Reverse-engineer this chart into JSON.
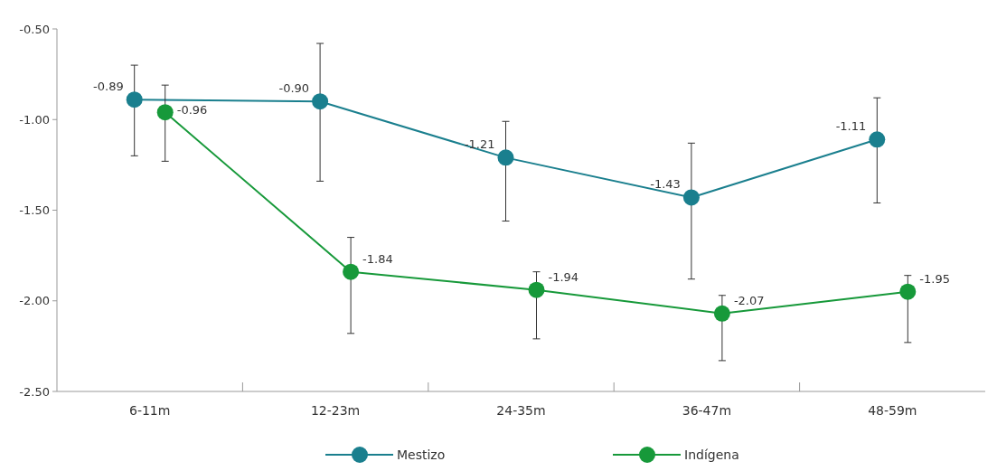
{
  "chart_data": {
    "type": "line",
    "categories": [
      "6-11m",
      "12-23m",
      "24-35m",
      "36-47m",
      "48-59m"
    ],
    "series": [
      {
        "name": "Mestizo",
        "color": "#1a7f8e",
        "values": [
          -0.89,
          -0.9,
          -1.21,
          -1.43,
          -1.11
        ],
        "value_labels": [
          "-0.89",
          "-0.90",
          "-1.21",
          "-1.43",
          "-1.11"
        ],
        "errors": [
          [
            -1.2,
            -0.7
          ],
          [
            -1.34,
            -0.58
          ],
          [
            -1.56,
            -1.01
          ],
          [
            -1.88,
            -1.13
          ],
          [
            -1.46,
            -0.88
          ]
        ]
      },
      {
        "name": "Indígena",
        "color": "#17993a",
        "values": [
          -0.96,
          -1.84,
          -1.94,
          -2.07,
          -1.95
        ],
        "value_labels": [
          "-0.96",
          "-1.84",
          "-1.94",
          "-2.07",
          "-1.95"
        ],
        "errors": [
          [
            -1.23,
            -0.81
          ],
          [
            -2.18,
            -1.65
          ],
          [
            -2.21,
            -1.84
          ],
          [
            -2.33,
            -1.97
          ],
          [
            -2.23,
            -1.86
          ]
        ]
      }
    ],
    "ylim": [
      -2.5,
      -0.5
    ],
    "yticks": [
      {
        "value": -2.5,
        "label": "-2.50"
      },
      {
        "value": -2,
        "label": "-2.00"
      },
      {
        "value": -1.5,
        "label": "-1.50"
      },
      {
        "value": -1,
        "label": "-1.00"
      },
      {
        "value": -0.5,
        "label": "-0.50"
      }
    ],
    "legend": "bottom",
    "marker": "circle",
    "grid": false
  }
}
